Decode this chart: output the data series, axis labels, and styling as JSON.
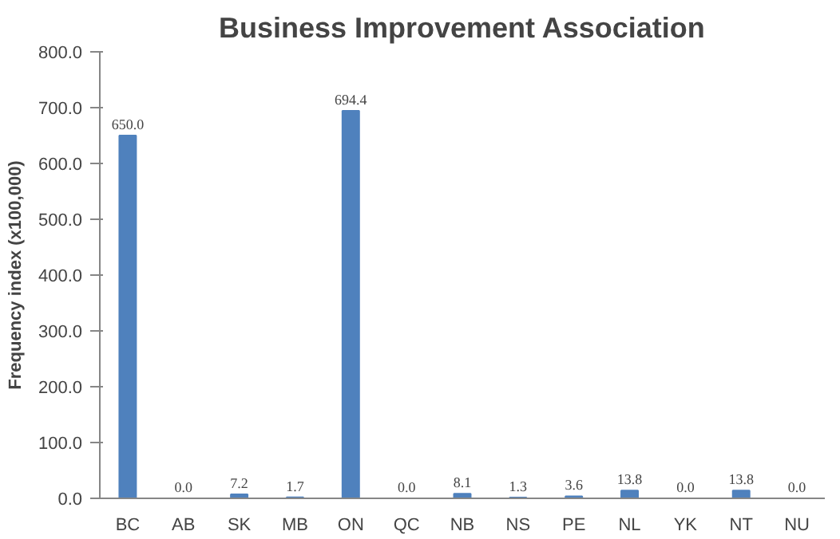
{
  "chart_data": {
    "type": "bar",
    "title": "Business Improvement Association",
    "ylabel": "Frequency index (x100,000)",
    "categories": [
      "BC",
      "AB",
      "SK",
      "MB",
      "ON",
      "QC",
      "NB",
      "NS",
      "PE",
      "NL",
      "YK",
      "NT",
      "NU"
    ],
    "values": [
      650.0,
      0.0,
      7.2,
      1.7,
      694.4,
      0.0,
      8.1,
      1.3,
      3.6,
      13.8,
      0.0,
      13.8,
      0.0
    ],
    "value_labels": [
      "650.0",
      "0.0",
      "7.2",
      "1.7",
      "694.4",
      "0.0",
      "8.1",
      "1.3",
      "3.6",
      "13.8",
      "0.0",
      "13.8",
      "0.0"
    ],
    "color": "#4f81bd",
    "ylim": [
      0,
      800
    ],
    "yticks": [
      {
        "value": 0,
        "label": "0.0"
      },
      {
        "value": 100,
        "label": "100.0"
      },
      {
        "value": 200,
        "label": "200.0"
      },
      {
        "value": 300,
        "label": "300.0"
      },
      {
        "value": 400,
        "label": "400.0"
      },
      {
        "value": 500,
        "label": "500.0"
      },
      {
        "value": 600,
        "label": "600.0"
      },
      {
        "value": 700,
        "label": "700.0"
      },
      {
        "value": 800,
        "label": "800.0"
      }
    ],
    "grid": false
  }
}
